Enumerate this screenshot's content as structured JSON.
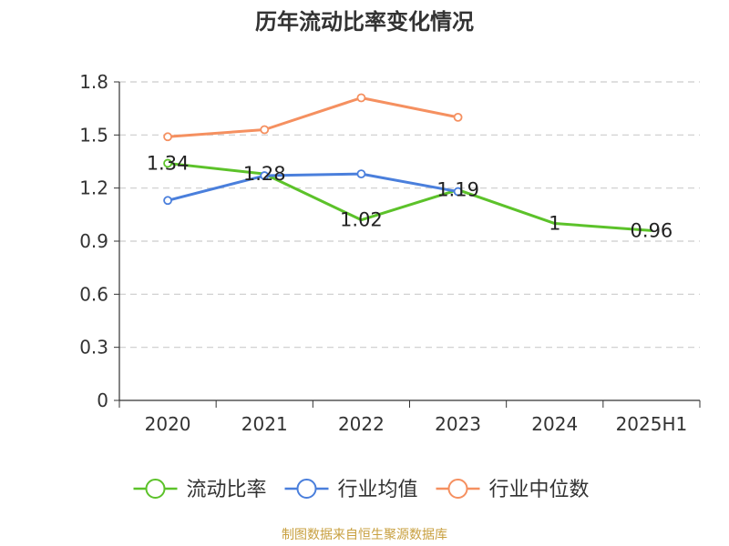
{
  "title": "历年流动比率变化情况",
  "source_note": "制图数据来自恒生聚源数据库",
  "colors": {
    "axis": "#333333",
    "grid": "#cccccc",
    "source_note": "#c8a040"
  },
  "chart_data": {
    "type": "line",
    "title": "历年流动比率变化情况",
    "categories": [
      "2020",
      "2021",
      "2022",
      "2023",
      "2024",
      "2025H1"
    ],
    "y_ticks": [
      "0",
      "0.3",
      "0.6",
      "0.9",
      "1.2",
      "1.5",
      "1.8"
    ],
    "ylim": [
      0,
      1.8
    ],
    "grid": "horizontal dashed",
    "legend_position": "bottom",
    "series": [
      {
        "name": "流动比率",
        "color": "#5cc22a",
        "values": [
          1.34,
          1.28,
          1.02,
          1.19,
          1.0,
          0.96
        ],
        "labels": [
          "1.34",
          "1.28",
          "1.02",
          "1.19",
          "1",
          "0.96"
        ]
      },
      {
        "name": "行业均值",
        "color": "#4a7fdc",
        "values": [
          1.13,
          1.27,
          1.28,
          1.18,
          null,
          null
        ],
        "labels": []
      },
      {
        "name": "行业中位数",
        "color": "#f59060",
        "values": [
          1.49,
          1.53,
          1.71,
          1.6,
          null,
          null
        ],
        "labels": []
      }
    ]
  }
}
